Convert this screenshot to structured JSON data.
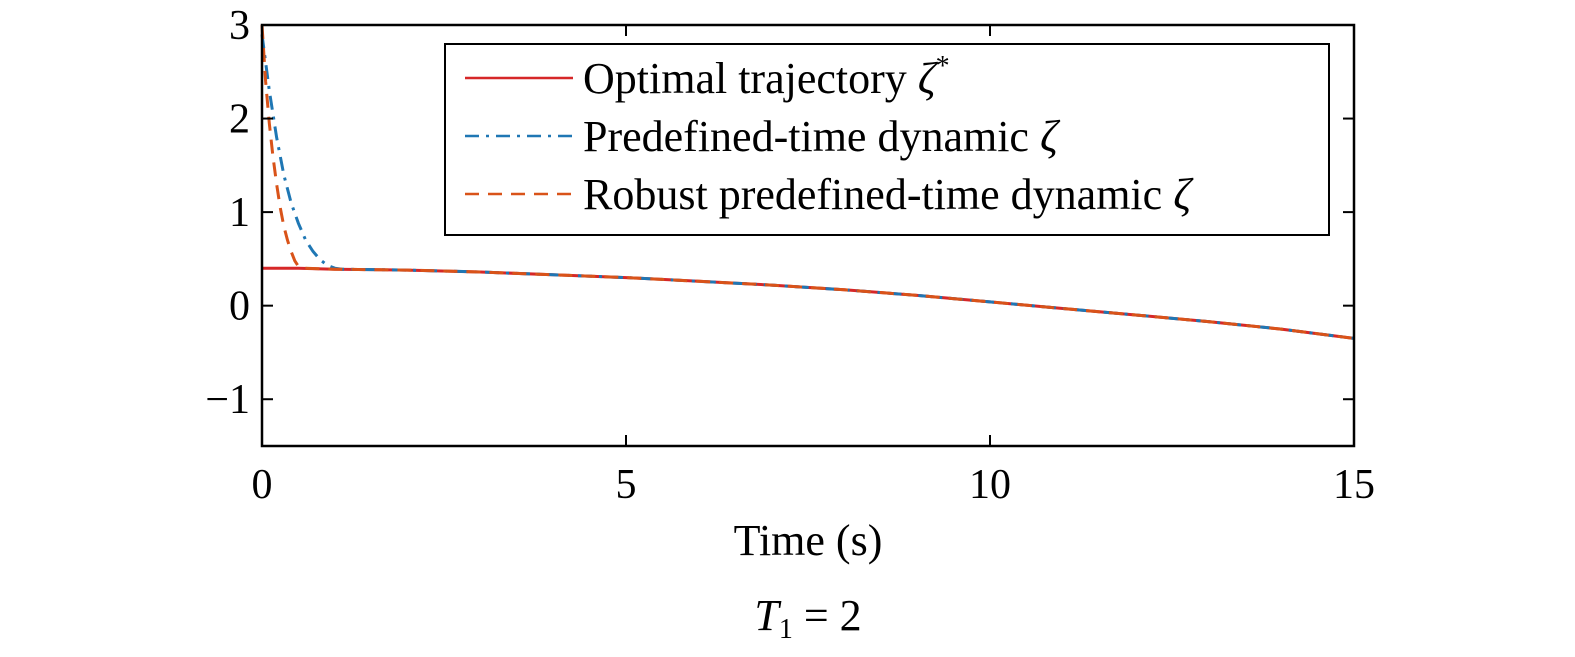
{
  "chart_data": {
    "type": "line",
    "xlabel": "Time (s)",
    "ylabel": "",
    "caption": {
      "symbol": "T",
      "subscript": "1",
      "rest": " = 2"
    },
    "xlim": [
      0,
      15
    ],
    "ylim": [
      -1.5,
      3
    ],
    "xticks": [
      0,
      5,
      10,
      15
    ],
    "yticks": [
      3,
      2,
      1,
      0,
      -1
    ],
    "xtick_labels": [
      "0",
      "5",
      "10",
      "15"
    ],
    "ytick_labels": [
      "3",
      "2",
      "1",
      "0",
      "−1"
    ],
    "grid": false,
    "legend_position": "top-right",
    "series": [
      {
        "name": "Optimal trajectory",
        "symbol": "ζ",
        "superscript": "*",
        "color": "#d62728",
        "dash": "solid",
        "x": [
          0,
          0.5,
          1,
          2,
          3,
          4,
          5,
          6,
          7,
          8,
          9,
          10,
          11,
          12,
          13,
          14,
          15
        ],
        "y": [
          0.4,
          0.4,
          0.39,
          0.38,
          0.36,
          0.33,
          0.3,
          0.26,
          0.22,
          0.17,
          0.11,
          0.04,
          -0.03,
          -0.1,
          -0.17,
          -0.25,
          -0.35
        ]
      },
      {
        "name": "Predefined-time dynamic",
        "symbol": "ζ",
        "superscript": "",
        "color": "#1f77b4",
        "dash": "dashdot",
        "x": [
          0,
          0.1,
          0.2,
          0.3,
          0.4,
          0.5,
          0.6,
          0.7,
          0.8,
          0.9,
          1.0,
          1.1,
          2,
          3,
          4,
          5,
          6,
          7,
          8,
          9,
          10,
          11,
          12,
          13,
          14,
          15
        ],
        "y": [
          2.9,
          2.3,
          1.8,
          1.4,
          1.1,
          0.88,
          0.7,
          0.58,
          0.49,
          0.43,
          0.4,
          0.39,
          0.38,
          0.36,
          0.33,
          0.3,
          0.26,
          0.22,
          0.17,
          0.11,
          0.04,
          -0.03,
          -0.1,
          -0.17,
          -0.25,
          -0.35
        ]
      },
      {
        "name": "Robust predefined-time dynamic",
        "symbol": "ζ",
        "superscript": "",
        "color": "#d95319",
        "dash": "dashed",
        "x": [
          0,
          0.05,
          0.1,
          0.15,
          0.2,
          0.25,
          0.3,
          0.35,
          0.4,
          0.45,
          0.5,
          0.55,
          1,
          2,
          3,
          4,
          5,
          6,
          7,
          8,
          9,
          10,
          11,
          12,
          13,
          14,
          15
        ],
        "y": [
          3.0,
          2.4,
          1.95,
          1.6,
          1.3,
          1.05,
          0.85,
          0.7,
          0.58,
          0.48,
          0.42,
          0.4,
          0.39,
          0.38,
          0.36,
          0.33,
          0.3,
          0.26,
          0.22,
          0.17,
          0.11,
          0.04,
          -0.03,
          -0.1,
          -0.17,
          -0.25,
          -0.35
        ]
      }
    ]
  }
}
